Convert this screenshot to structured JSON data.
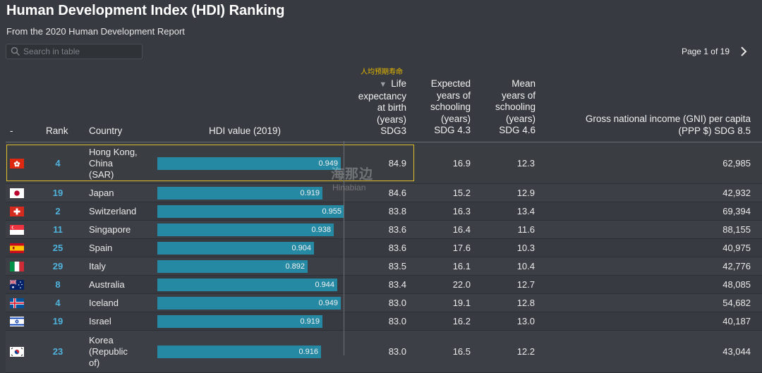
{
  "page": {
    "title": "Human Development Index (HDI) Ranking",
    "subtitle": "From the 2020 Human Development Report"
  },
  "search": {
    "placeholder": "Search in table",
    "value": ""
  },
  "pagination": {
    "label": "Page 1 of 19"
  },
  "annotation": "人均预期寿命",
  "watermark": {
    "cn": "海那边",
    "en": "Hinabian"
  },
  "columns": {
    "flag": "-",
    "rank": "Rank",
    "country": "Country",
    "hdi": "HDI value (2019)",
    "life_expectancy": [
      "Life",
      "expectancy",
      "at birth",
      "(years)",
      "SDG3"
    ],
    "expected_schooling": [
      "Expected",
      "years of",
      "schooling",
      "(years)",
      "SDG 4.3"
    ],
    "mean_schooling": [
      "Mean",
      "years of",
      "schooling",
      "(years)",
      "SDG 4.6"
    ],
    "gni": [
      "Gross national income (GNI) per capita",
      "(PPP $) SDG 8.5"
    ]
  },
  "rows": [
    {
      "flag": "hong-kong-flag",
      "rank": "4",
      "country_lines": [
        "Hong Kong,",
        "China",
        "(SAR)"
      ],
      "hdi": "0.949",
      "life_expectancy": "84.9",
      "expected_schooling": "16.9",
      "mean_schooling": "12.3",
      "gni": "62,985"
    },
    {
      "flag": "japan-flag",
      "rank": "19",
      "country_lines": [
        "Japan"
      ],
      "hdi": "0.919",
      "life_expectancy": "84.6",
      "expected_schooling": "15.2",
      "mean_schooling": "12.9",
      "gni": "42,932"
    },
    {
      "flag": "switzerland-flag",
      "rank": "2",
      "country_lines": [
        "Switzerland"
      ],
      "hdi": "0.955",
      "life_expectancy": "83.8",
      "expected_schooling": "16.3",
      "mean_schooling": "13.4",
      "gni": "69,394"
    },
    {
      "flag": "singapore-flag",
      "rank": "11",
      "country_lines": [
        "Singapore"
      ],
      "hdi": "0.938",
      "life_expectancy": "83.6",
      "expected_schooling": "16.4",
      "mean_schooling": "11.6",
      "gni": "88,155"
    },
    {
      "flag": "spain-flag",
      "rank": "25",
      "country_lines": [
        "Spain"
      ],
      "hdi": "0.904",
      "life_expectancy": "83.6",
      "expected_schooling": "17.6",
      "mean_schooling": "10.3",
      "gni": "40,975"
    },
    {
      "flag": "italy-flag",
      "rank": "29",
      "country_lines": [
        "Italy"
      ],
      "hdi": "0.892",
      "life_expectancy": "83.5",
      "expected_schooling": "16.1",
      "mean_schooling": "10.4",
      "gni": "42,776"
    },
    {
      "flag": "australia-flag",
      "rank": "8",
      "country_lines": [
        "Australia"
      ],
      "hdi": "0.944",
      "life_expectancy": "83.4",
      "expected_schooling": "22.0",
      "mean_schooling": "12.7",
      "gni": "48,085"
    },
    {
      "flag": "iceland-flag",
      "rank": "4",
      "country_lines": [
        "Iceland"
      ],
      "hdi": "0.949",
      "life_expectancy": "83.0",
      "expected_schooling": "19.1",
      "mean_schooling": "12.8",
      "gni": "54,682"
    },
    {
      "flag": "israel-flag",
      "rank": "19",
      "country_lines": [
        "Israel"
      ],
      "hdi": "0.919",
      "life_expectancy": "83.0",
      "expected_schooling": "16.2",
      "mean_schooling": "13.0",
      "gni": "40,187"
    },
    {
      "flag": "south-korea-flag",
      "rank": "23",
      "country_lines": [
        "Korea",
        "(Republic",
        "of)"
      ],
      "hdi": "0.916",
      "life_expectancy": "83.0",
      "expected_schooling": "16.5",
      "mean_schooling": "12.2",
      "gni": "43,044"
    }
  ]
}
